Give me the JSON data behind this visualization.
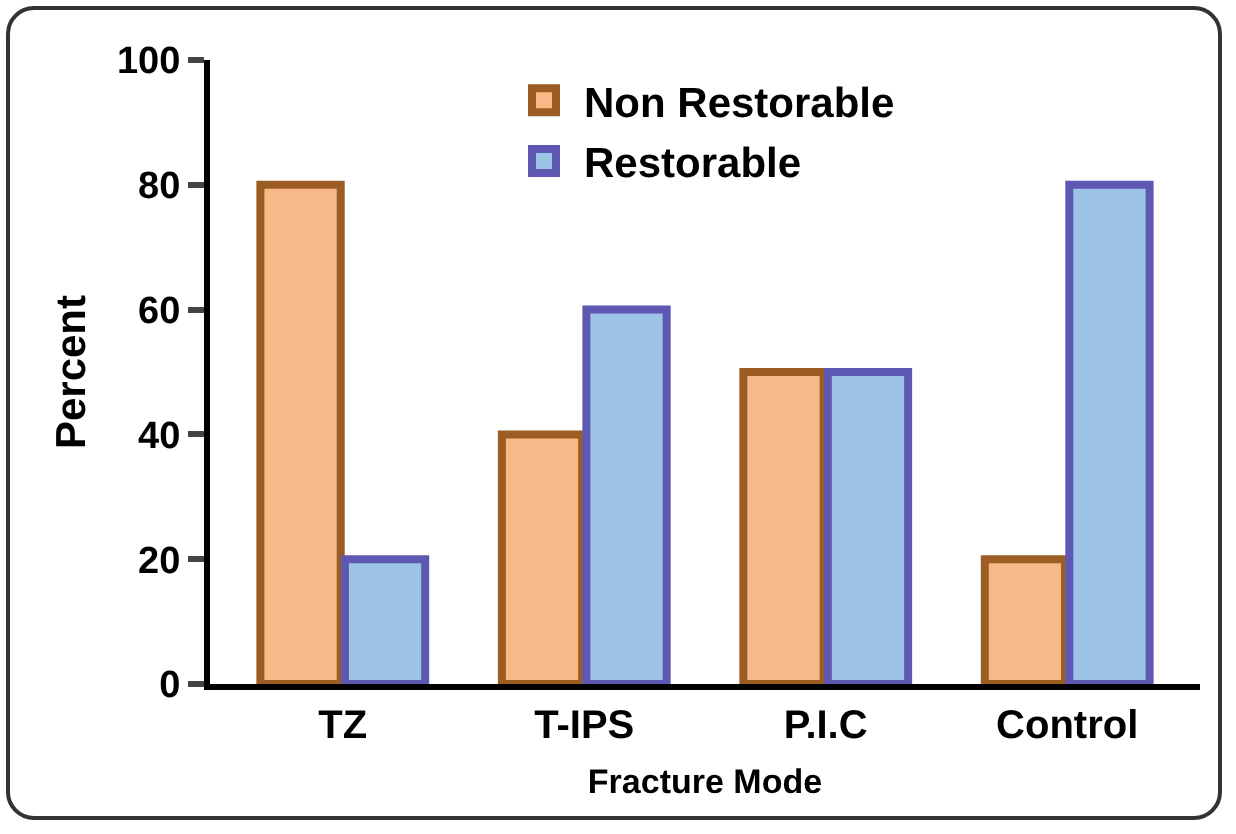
{
  "chart_data": {
    "type": "bar",
    "xlabel": "Fracture Mode",
    "ylabel": "Percent",
    "categories": [
      "TZ",
      "T-IPS",
      "P.I.C",
      "Control"
    ],
    "series": [
      {
        "name": "Non Restorable",
        "color": "#f6b987",
        "values": [
          80,
          40,
          50,
          20
        ]
      },
      {
        "name": "Restorable",
        "color": "#9dc3e6",
        "values": [
          20,
          60,
          50,
          80
        ]
      }
    ],
    "ylim": [
      0,
      100
    ],
    "yticks": [
      0,
      20,
      40,
      60,
      80,
      100
    ],
    "grid": false,
    "legend": "top"
  }
}
